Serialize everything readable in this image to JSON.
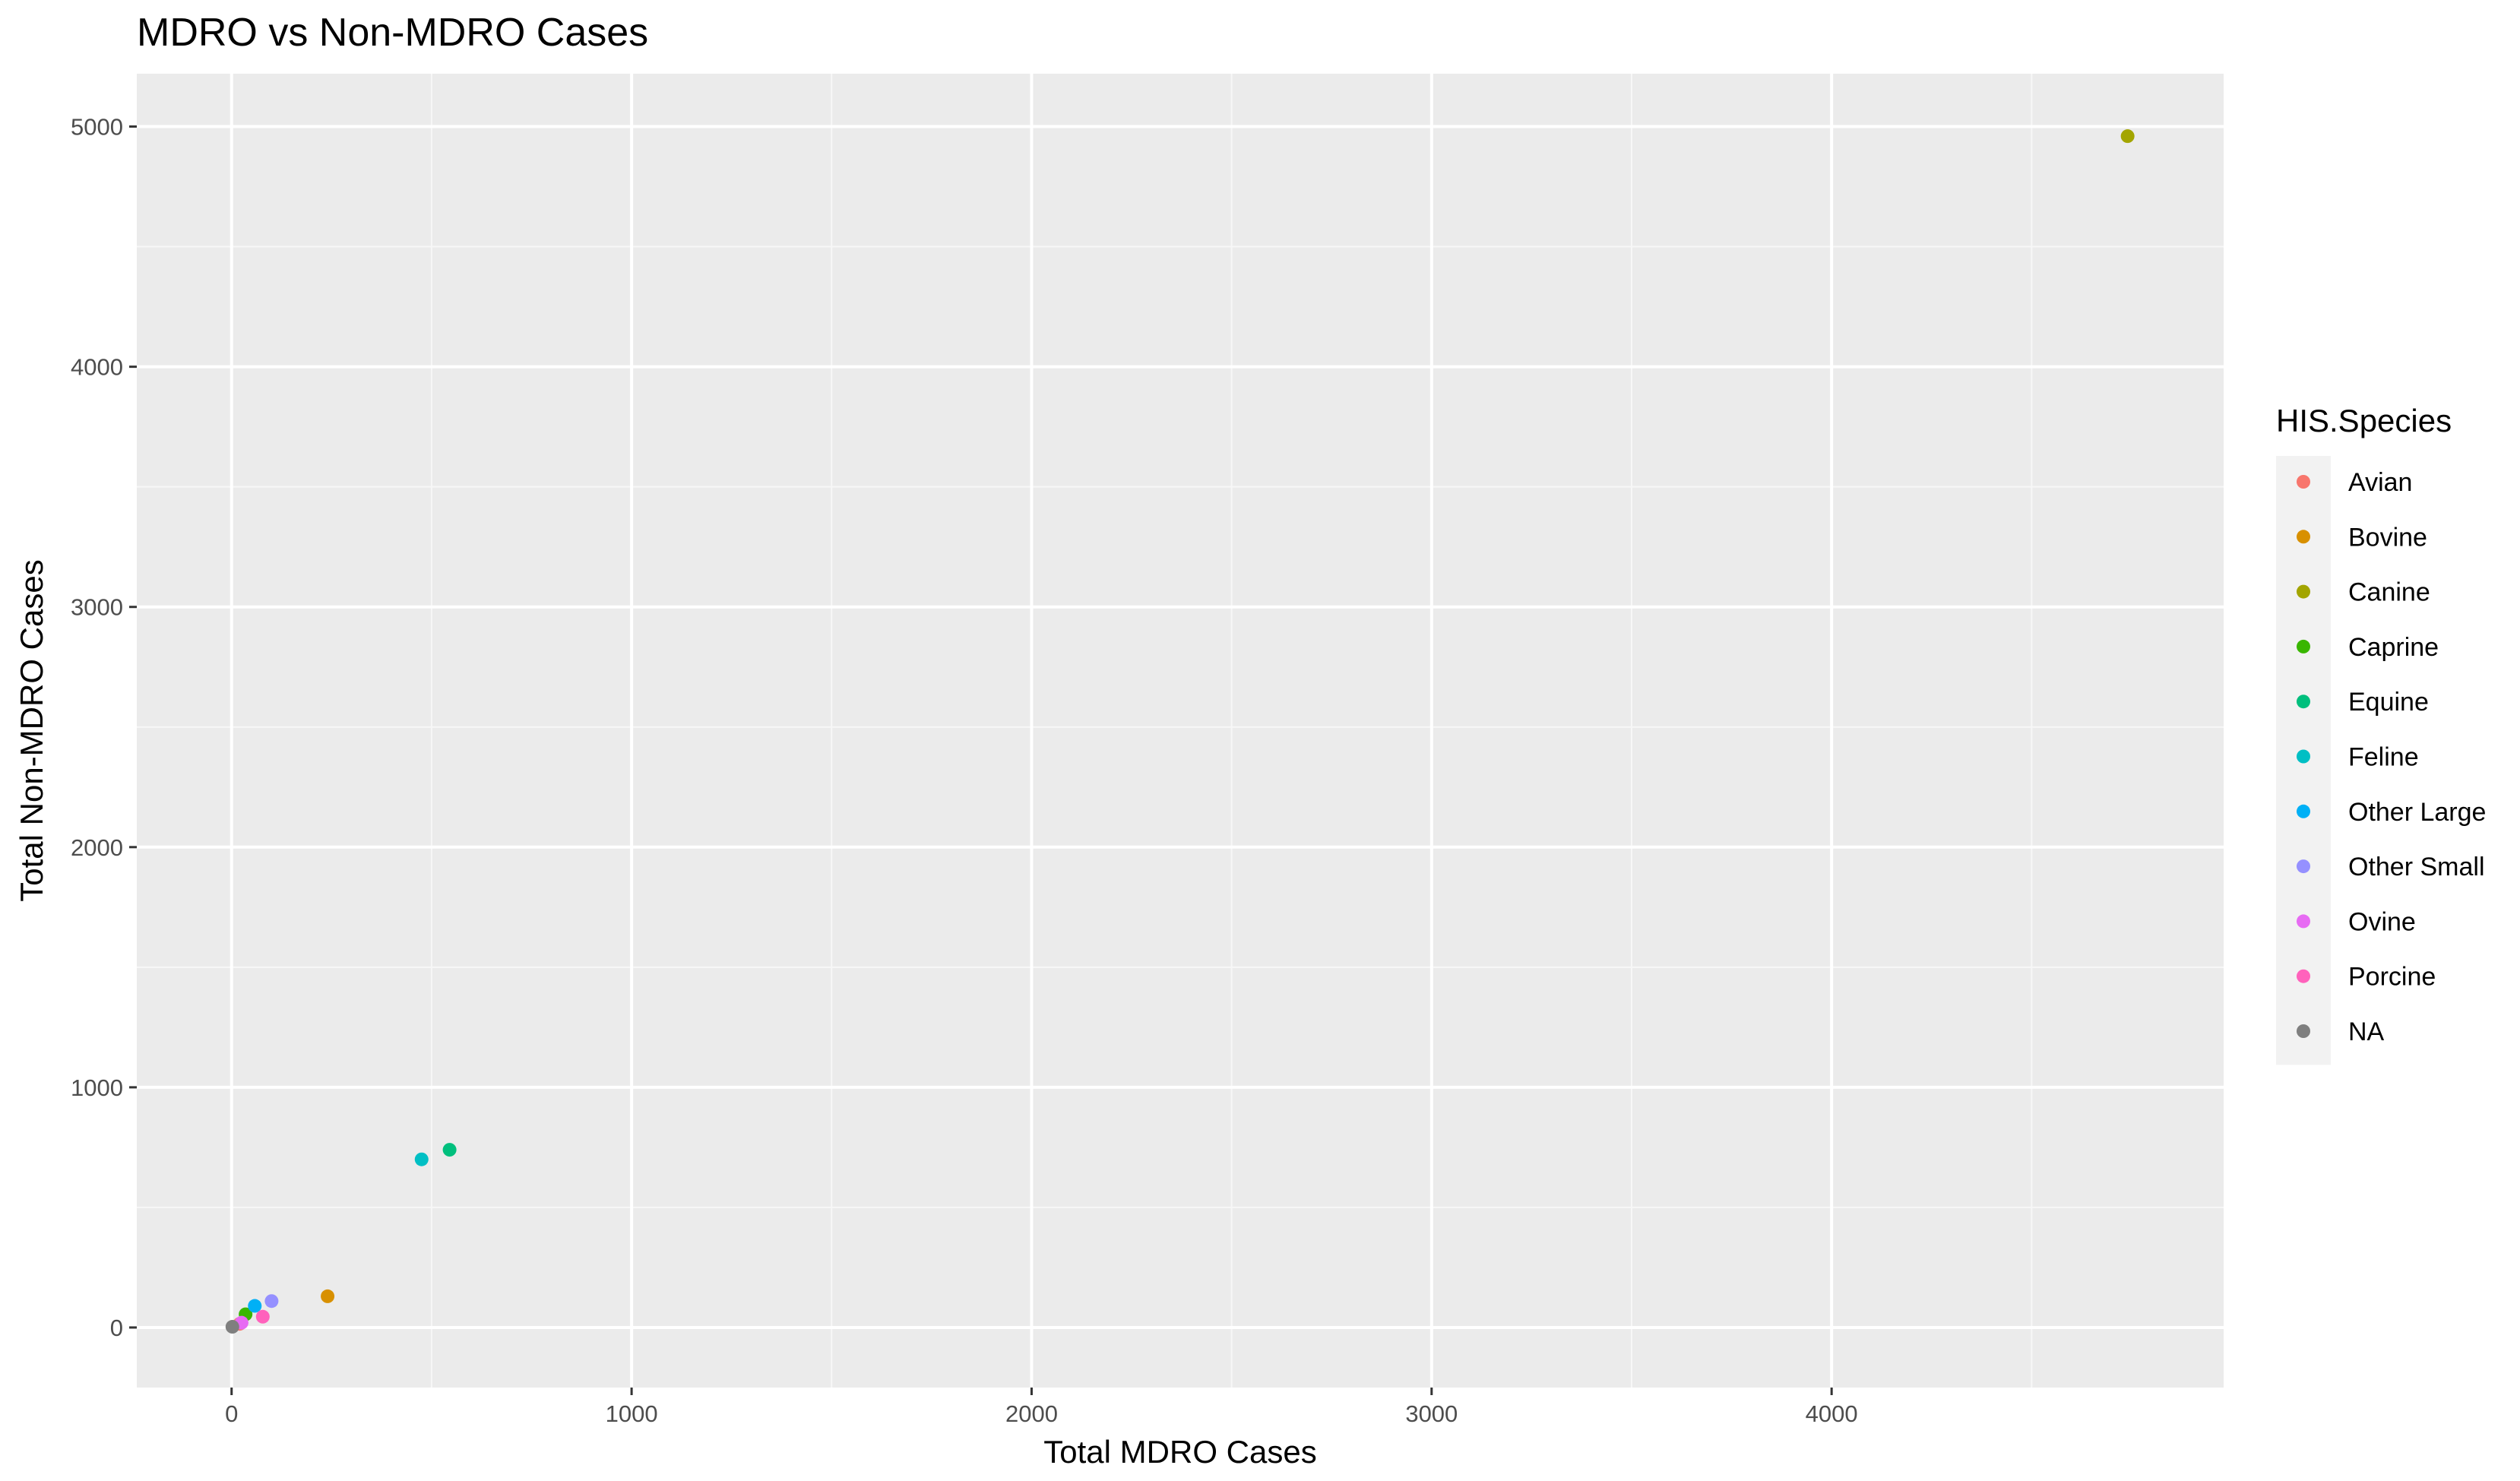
{
  "chart_data": {
    "type": "scatter",
    "title": "MDRO vs Non-MDRO Cases",
    "xlabel": "Total MDRO Cases",
    "ylabel": "Total Non-MDRO Cases",
    "xlim": [
      -237,
      4980
    ],
    "ylim": [
      -250,
      5220
    ],
    "x_ticks": [
      0,
      1000,
      2000,
      3000,
      4000
    ],
    "y_ticks": [
      0,
      1000,
      2000,
      3000,
      4000,
      5000
    ],
    "x_tick_labels": [
      "0",
      "1000",
      "2000",
      "3000",
      "4000"
    ],
    "y_tick_labels": [
      "0",
      "1000",
      "2000",
      "3000",
      "4000",
      "5000"
    ],
    "grid": true,
    "legend_position": "right",
    "legend_title": "HIS.Species",
    "series": [
      {
        "name": "Avian",
        "color": "#F8766D",
        "points": [
          [
            20,
            15
          ]
        ]
      },
      {
        "name": "Bovine",
        "color": "#D89000",
        "points": [
          [
            240,
            130
          ]
        ]
      },
      {
        "name": "Canine",
        "color": "#A3A500",
        "points": [
          [
            4740,
            4960
          ]
        ]
      },
      {
        "name": "Caprine",
        "color": "#39B600",
        "points": [
          [
            35,
            55
          ]
        ]
      },
      {
        "name": "Equine",
        "color": "#00BF7D",
        "points": [
          [
            545,
            740
          ]
        ]
      },
      {
        "name": "Feline",
        "color": "#00BFC4",
        "points": [
          [
            475,
            700
          ]
        ]
      },
      {
        "name": "Other Large",
        "color": "#00B0F6",
        "points": [
          [
            58,
            90
          ]
        ]
      },
      {
        "name": "Other Small",
        "color": "#9590FF",
        "points": [
          [
            100,
            110
          ]
        ]
      },
      {
        "name": "Ovine",
        "color": "#E76BF3",
        "points": [
          [
            25,
            20
          ]
        ]
      },
      {
        "name": "Porcine",
        "color": "#FF62BC",
        "points": [
          [
            78,
            45
          ]
        ]
      },
      {
        "name": "NA",
        "color": "#7F7F7F",
        "points": [
          [
            2,
            3
          ]
        ]
      }
    ]
  }
}
